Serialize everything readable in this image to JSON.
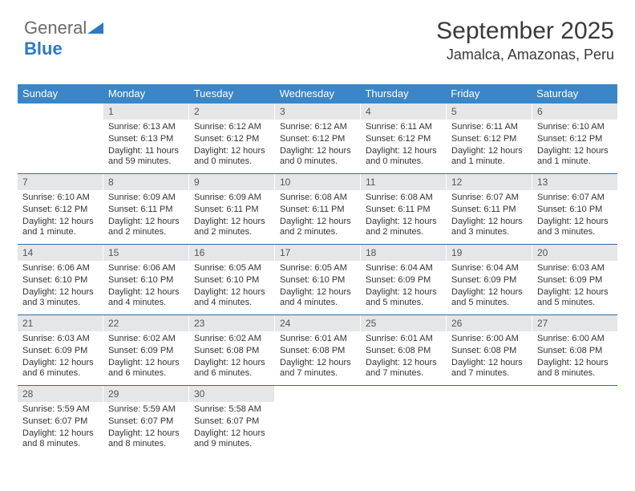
{
  "brand": {
    "part1": "General",
    "part2": "Blue"
  },
  "header": {
    "monthTitle": "September 2025",
    "location": "Jamalca, Amazonas, Peru"
  },
  "style": {
    "headerBg": "#3a86c8",
    "headerFg": "#ffffff",
    "dayNumBg": "#e4e6e8",
    "weekBorder": "#2e6da4",
    "bodyFg": "#333333",
    "titleFontSize": 30,
    "locFontSize": 18,
    "hdrFontSize": 13,
    "dayNumFontSize": 12,
    "bodyFontSize": 11
  },
  "calendar": {
    "dayHeaders": [
      "Sunday",
      "Monday",
      "Tuesday",
      "Wednesday",
      "Thursday",
      "Friday",
      "Saturday"
    ],
    "weeks": [
      [
        {
          "empty": true
        },
        {
          "num": "1",
          "sunrise": "Sunrise: 6:13 AM",
          "sunset": "Sunset: 6:13 PM",
          "daylight": "Daylight: 11 hours and 59 minutes."
        },
        {
          "num": "2",
          "sunrise": "Sunrise: 6:12 AM",
          "sunset": "Sunset: 6:12 PM",
          "daylight": "Daylight: 12 hours and 0 minutes."
        },
        {
          "num": "3",
          "sunrise": "Sunrise: 6:12 AM",
          "sunset": "Sunset: 6:12 PM",
          "daylight": "Daylight: 12 hours and 0 minutes."
        },
        {
          "num": "4",
          "sunrise": "Sunrise: 6:11 AM",
          "sunset": "Sunset: 6:12 PM",
          "daylight": "Daylight: 12 hours and 0 minutes."
        },
        {
          "num": "5",
          "sunrise": "Sunrise: 6:11 AM",
          "sunset": "Sunset: 6:12 PM",
          "daylight": "Daylight: 12 hours and 1 minute."
        },
        {
          "num": "6",
          "sunrise": "Sunrise: 6:10 AM",
          "sunset": "Sunset: 6:12 PM",
          "daylight": "Daylight: 12 hours and 1 minute."
        }
      ],
      [
        {
          "num": "7",
          "sunrise": "Sunrise: 6:10 AM",
          "sunset": "Sunset: 6:12 PM",
          "daylight": "Daylight: 12 hours and 1 minute."
        },
        {
          "num": "8",
          "sunrise": "Sunrise: 6:09 AM",
          "sunset": "Sunset: 6:11 PM",
          "daylight": "Daylight: 12 hours and 2 minutes."
        },
        {
          "num": "9",
          "sunrise": "Sunrise: 6:09 AM",
          "sunset": "Sunset: 6:11 PM",
          "daylight": "Daylight: 12 hours and 2 minutes."
        },
        {
          "num": "10",
          "sunrise": "Sunrise: 6:08 AM",
          "sunset": "Sunset: 6:11 PM",
          "daylight": "Daylight: 12 hours and 2 minutes."
        },
        {
          "num": "11",
          "sunrise": "Sunrise: 6:08 AM",
          "sunset": "Sunset: 6:11 PM",
          "daylight": "Daylight: 12 hours and 2 minutes."
        },
        {
          "num": "12",
          "sunrise": "Sunrise: 6:07 AM",
          "sunset": "Sunset: 6:11 PM",
          "daylight": "Daylight: 12 hours and 3 minutes."
        },
        {
          "num": "13",
          "sunrise": "Sunrise: 6:07 AM",
          "sunset": "Sunset: 6:10 PM",
          "daylight": "Daylight: 12 hours and 3 minutes."
        }
      ],
      [
        {
          "num": "14",
          "sunrise": "Sunrise: 6:06 AM",
          "sunset": "Sunset: 6:10 PM",
          "daylight": "Daylight: 12 hours and 3 minutes."
        },
        {
          "num": "15",
          "sunrise": "Sunrise: 6:06 AM",
          "sunset": "Sunset: 6:10 PM",
          "daylight": "Daylight: 12 hours and 4 minutes."
        },
        {
          "num": "16",
          "sunrise": "Sunrise: 6:05 AM",
          "sunset": "Sunset: 6:10 PM",
          "daylight": "Daylight: 12 hours and 4 minutes."
        },
        {
          "num": "17",
          "sunrise": "Sunrise: 6:05 AM",
          "sunset": "Sunset: 6:10 PM",
          "daylight": "Daylight: 12 hours and 4 minutes."
        },
        {
          "num": "18",
          "sunrise": "Sunrise: 6:04 AM",
          "sunset": "Sunset: 6:09 PM",
          "daylight": "Daylight: 12 hours and 5 minutes."
        },
        {
          "num": "19",
          "sunrise": "Sunrise: 6:04 AM",
          "sunset": "Sunset: 6:09 PM",
          "daylight": "Daylight: 12 hours and 5 minutes."
        },
        {
          "num": "20",
          "sunrise": "Sunrise: 6:03 AM",
          "sunset": "Sunset: 6:09 PM",
          "daylight": "Daylight: 12 hours and 5 minutes."
        }
      ],
      [
        {
          "num": "21",
          "sunrise": "Sunrise: 6:03 AM",
          "sunset": "Sunset: 6:09 PM",
          "daylight": "Daylight: 12 hours and 6 minutes."
        },
        {
          "num": "22",
          "sunrise": "Sunrise: 6:02 AM",
          "sunset": "Sunset: 6:09 PM",
          "daylight": "Daylight: 12 hours and 6 minutes."
        },
        {
          "num": "23",
          "sunrise": "Sunrise: 6:02 AM",
          "sunset": "Sunset: 6:08 PM",
          "daylight": "Daylight: 12 hours and 6 minutes."
        },
        {
          "num": "24",
          "sunrise": "Sunrise: 6:01 AM",
          "sunset": "Sunset: 6:08 PM",
          "daylight": "Daylight: 12 hours and 7 minutes."
        },
        {
          "num": "25",
          "sunrise": "Sunrise: 6:01 AM",
          "sunset": "Sunset: 6:08 PM",
          "daylight": "Daylight: 12 hours and 7 minutes."
        },
        {
          "num": "26",
          "sunrise": "Sunrise: 6:00 AM",
          "sunset": "Sunset: 6:08 PM",
          "daylight": "Daylight: 12 hours and 7 minutes."
        },
        {
          "num": "27",
          "sunrise": "Sunrise: 6:00 AM",
          "sunset": "Sunset: 6:08 PM",
          "daylight": "Daylight: 12 hours and 8 minutes."
        }
      ],
      [
        {
          "num": "28",
          "sunrise": "Sunrise: 5:59 AM",
          "sunset": "Sunset: 6:07 PM",
          "daylight": "Daylight: 12 hours and 8 minutes."
        },
        {
          "num": "29",
          "sunrise": "Sunrise: 5:59 AM",
          "sunset": "Sunset: 6:07 PM",
          "daylight": "Daylight: 12 hours and 8 minutes."
        },
        {
          "num": "30",
          "sunrise": "Sunrise: 5:58 AM",
          "sunset": "Sunset: 6:07 PM",
          "daylight": "Daylight: 12 hours and 9 minutes."
        },
        {
          "empty": true
        },
        {
          "empty": true
        },
        {
          "empty": true
        },
        {
          "empty": true
        }
      ]
    ]
  }
}
